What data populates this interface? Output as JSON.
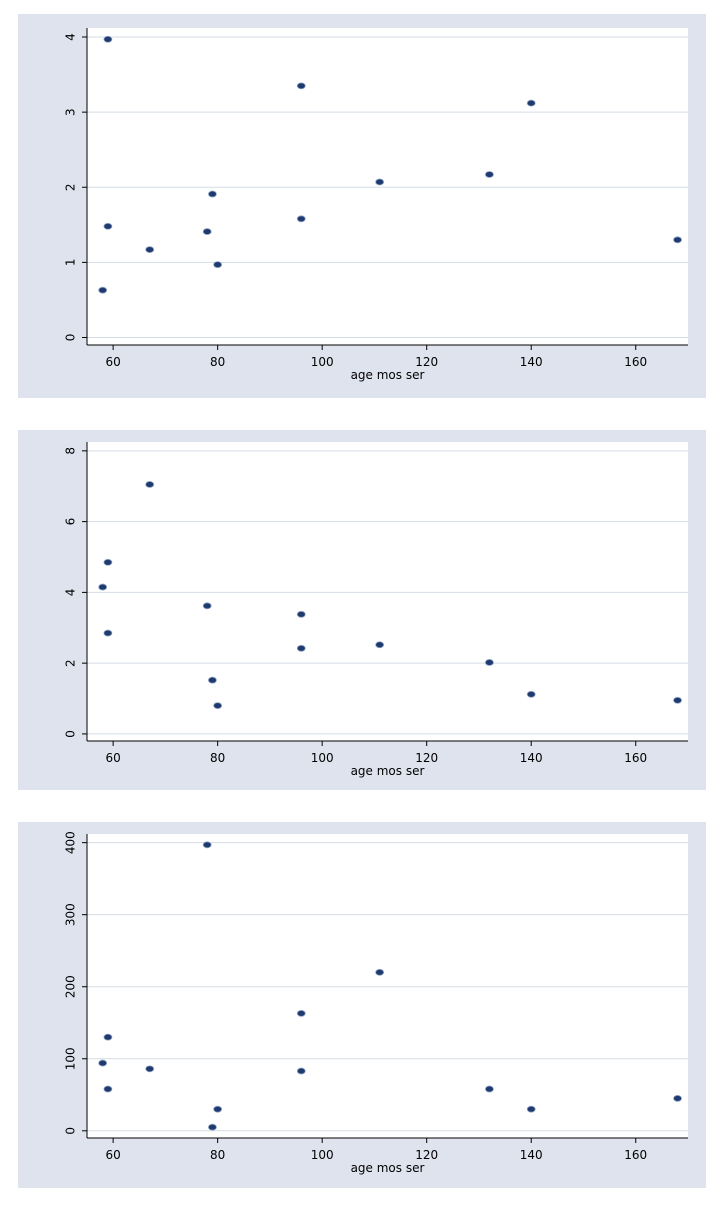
{
  "chart_data": [
    {
      "type": "scatter",
      "x_label": "age mos ser",
      "color": "#1f3a6e",
      "grid": true,
      "x": [
        59,
        96,
        140,
        79,
        111,
        132,
        59,
        67,
        78,
        96,
        80,
        58,
        168
      ],
      "values": [
        3.97,
        3.35,
        3.12,
        1.91,
        2.07,
        2.17,
        1.48,
        1.17,
        1.41,
        1.58,
        0.97,
        0.63,
        1.3
      ],
      "xlim": [
        55,
        170
      ],
      "xticks": [
        60,
        80,
        100,
        120,
        140,
        160
      ],
      "ylim": [
        -0.1,
        4.12
      ],
      "yticks": [
        0,
        1,
        2,
        3,
        4
      ]
    },
    {
      "type": "scatter",
      "x_label": "age mos ser",
      "color": "#1f3a6e",
      "grid": true,
      "x": [
        67,
        59,
        58,
        78,
        96,
        59,
        96,
        111,
        132,
        79,
        140,
        80,
        168
      ],
      "values": [
        7.05,
        4.85,
        4.15,
        3.62,
        3.38,
        2.85,
        2.42,
        2.52,
        2.02,
        1.52,
        1.12,
        0.8,
        0.95
      ],
      "xlim": [
        55,
        170
      ],
      "xticks": [
        60,
        80,
        100,
        120,
        140,
        160
      ],
      "ylim": [
        -0.2,
        8.25
      ],
      "yticks": [
        0,
        2,
        4,
        6,
        8
      ]
    },
    {
      "type": "scatter",
      "x_label": "age mos ser",
      "color": "#1f3a6e",
      "grid": true,
      "x": [
        78,
        111,
        96,
        59,
        58,
        67,
        96,
        59,
        132,
        80,
        140,
        79,
        168
      ],
      "values": [
        397,
        220,
        163,
        130,
        94,
        86,
        83,
        58,
        58,
        30,
        30,
        5,
        45
      ],
      "xlim": [
        55,
        170
      ],
      "xticks": [
        60,
        80,
        100,
        120,
        140,
        160
      ],
      "ylim": [
        -10,
        412
      ],
      "yticks": [
        0,
        100,
        200,
        300,
        400
      ]
    }
  ]
}
